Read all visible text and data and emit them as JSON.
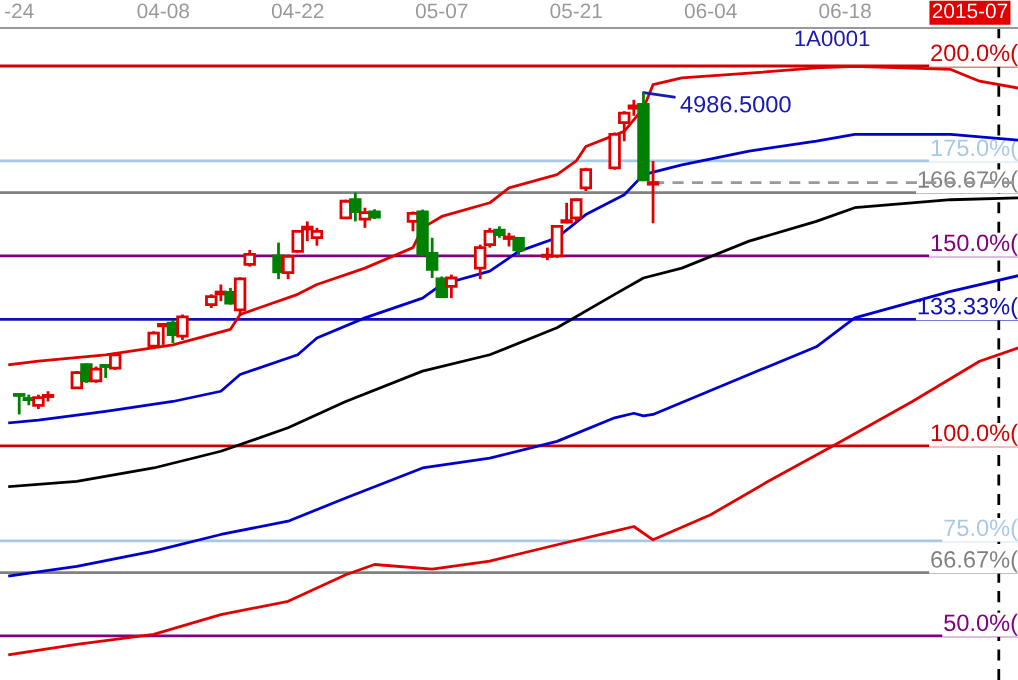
{
  "chart_data": {
    "type": "candlestick",
    "tick_labels": "x",
    "xlim": [
      "2015-03-22",
      "2015-07-06"
    ],
    "ylim": [
      38.4,
      210
    ],
    "xticks": [
      {
        "value": "2015-03-24",
        "label": "-24"
      },
      {
        "value": "2015-04-08",
        "label": "04-08"
      },
      {
        "value": "2015-04-22",
        "label": "04-22"
      },
      {
        "value": "2015-05-07",
        "label": "05-07"
      },
      {
        "value": "2015-05-21",
        "label": "05-21"
      },
      {
        "value": "2015-06-04",
        "label": "06-04"
      },
      {
        "value": "2015-06-18",
        "label": "06-18"
      },
      {
        "value": "2015-07",
        "label": "2015-07"
      }
    ],
    "x": [
      "2015-03-24",
      "2015-03-25",
      "2015-03-26",
      "2015-03-27",
      "2015-03-30",
      "2015-03-31",
      "2015-04-01",
      "2015-04-02",
      "2015-04-03",
      "2015-04-07",
      "2015-04-08",
      "2015-04-09",
      "2015-04-10",
      "2015-04-13",
      "2015-04-14",
      "2015-04-15",
      "2015-04-16",
      "2015-04-17",
      "2015-04-20",
      "2015-04-21",
      "2015-04-22",
      "2015-04-23",
      "2015-04-24",
      "2015-04-27",
      "2015-04-28",
      "2015-04-29",
      "2015-04-30",
      "2015-05-04",
      "2015-05-05",
      "2015-05-06",
      "2015-05-07",
      "2015-05-08",
      "2015-05-11",
      "2015-05-12",
      "2015-05-13",
      "2015-05-14",
      "2015-05-15",
      "2015-05-18",
      "2015-05-19",
      "2015-05-20",
      "2015-05-21",
      "2015-05-22",
      "2015-05-25",
      "2015-05-26",
      "2015-05-27",
      "2015-05-28",
      "2015-05-29"
    ],
    "ohlc": [
      [
        113.5,
        113.9,
        108.3,
        113.3
      ],
      [
        112.5,
        113.5,
        110.7,
        112.2
      ],
      [
        110.7,
        113.5,
        109.7,
        112.7
      ],
      [
        113.0,
        114.4,
        111.7,
        113.3
      ],
      [
        115.3,
        119.7,
        115.1,
        119.3
      ],
      [
        121.4,
        121.7,
        116.6,
        117.1
      ],
      [
        117.1,
        120.9,
        116.6,
        120.2
      ],
      [
        121.2,
        121.4,
        117.9,
        120.9
      ],
      [
        120.5,
        124.6,
        120.0,
        124.0
      ],
      [
        126.3,
        130.2,
        125.8,
        129.7
      ],
      [
        131.6,
        132.0,
        126.6,
        132.0
      ],
      [
        132.3,
        133.2,
        127.1,
        129.3
      ],
      [
        128.9,
        134.6,
        127.9,
        134.0
      ],
      [
        137.2,
        139.9,
        136.3,
        139.3
      ],
      [
        140.0,
        142.5,
        138.1,
        140.5
      ],
      [
        140.4,
        141.6,
        137.2,
        137.6
      ],
      [
        135.8,
        144.4,
        134.2,
        144.0
      ],
      [
        147.8,
        151.6,
        147.2,
        150.4
      ],
      [
        150.0,
        153.5,
        143.9,
        145.8
      ],
      [
        145.6,
        150.4,
        143.9,
        149.9
      ],
      [
        151.2,
        156.8,
        150.9,
        156.5
      ],
      [
        157.1,
        159.1,
        153.9,
        157.6
      ],
      [
        154.8,
        157.4,
        152.7,
        156.5
      ],
      [
        160.0,
        164.8,
        159.7,
        164.4
      ],
      [
        164.8,
        166.7,
        159.1,
        161.7
      ],
      [
        159.7,
        162.7,
        157.4,
        161.4
      ],
      [
        161.6,
        162.3,
        159.7,
        160.2
      ],
      [
        159.1,
        161.7,
        156.5,
        161.2
      ],
      [
        161.6,
        162.2,
        150.0,
        150.4
      ],
      [
        150.7,
        154.8,
        144.2,
        146.5
      ],
      [
        144.0,
        144.6,
        138.9,
        139.3
      ],
      [
        142.0,
        145.1,
        138.9,
        144.2
      ],
      [
        146.8,
        153.0,
        143.9,
        152.2
      ],
      [
        153.0,
        157.4,
        152.2,
        156.5
      ],
      [
        156.8,
        157.8,
        154.8,
        155.6
      ],
      [
        154.6,
        156.1,
        152.5,
        155.0
      ],
      [
        154.6,
        155.0,
        150.0,
        151.6
      ],
      [
        149.9,
        152.2,
        148.9,
        150.2
      ],
      [
        150.0,
        158.1,
        149.5,
        157.8
      ],
      [
        158.9,
        164.0,
        158.6,
        159.3
      ],
      [
        160.0,
        165.1,
        158.8,
        164.8
      ],
      [
        167.9,
        173.2,
        167.1,
        172.7
      ],
      [
        173.2,
        182.5,
        172.7,
        182.0
      ],
      [
        185.1,
        188.1,
        180.2,
        187.6
      ],
      [
        188.9,
        191.1,
        186.9,
        189.5
      ],
      [
        189.9,
        193.0,
        169.7,
        170.0
      ],
      [
        168.9,
        175.0,
        158.6,
        169.3
      ]
    ],
    "colors": [
      "#008000",
      "#008000",
      "#e00000",
      "#e00000",
      "#e00000",
      "#008000",
      "#e00000",
      "#008000",
      "#e00000",
      "#e00000",
      "#e00000",
      "#008000",
      "#e00000",
      "#e00000",
      "#e00000",
      "#008000",
      "#e00000",
      "#e00000",
      "#008000",
      "#e00000",
      "#e00000",
      "#e00000",
      "#e00000",
      "#e00000",
      "#008000",
      "#e00000",
      "#008000",
      "#e00000",
      "#008000",
      "#008000",
      "#008000",
      "#e00000",
      "#e00000",
      "#e00000",
      "#008000",
      "#e00000",
      "#008000",
      "#e00000",
      "#e00000",
      "#e00000",
      "#e00000",
      "#e00000",
      "#e00000",
      "#e00000",
      "#e00000",
      "#008000",
      "#e00000"
    ],
    "series": [
      {
        "type": "line",
        "color": "#e00000",
        "x": [
          "2015-03-23",
          "2015-03-26",
          "2015-04-02",
          "2015-04-09",
          "2015-04-15",
          "2015-04-16",
          "2015-04-22",
          "2015-04-24",
          "2015-04-29",
          "2015-05-04",
          "2015-05-05",
          "2015-05-07",
          "2015-05-12",
          "2015-05-14",
          "2015-05-19",
          "2015-05-21",
          "2015-05-22",
          "2015-05-26",
          "2015-05-28",
          "2015-05-29",
          "2015-06-01",
          "2015-06-08",
          "2015-06-15",
          "2015-06-19",
          "2015-06-29",
          "2015-07-02",
          "2015-07-06"
        ],
        "values": [
          121.4,
          122.3,
          124.0,
          126.6,
          130.7,
          134.6,
          139.9,
          142.5,
          146.8,
          152.2,
          157.4,
          160.4,
          164.0,
          167.9,
          171.4,
          175.0,
          178.8,
          182.8,
          188.9,
          195.1,
          196.9,
          198.1,
          199.5,
          199.9,
          199.1,
          196.0,
          194.2
        ]
      },
      {
        "type": "line",
        "color": "#0000cc",
        "x": [
          "2015-03-23",
          "2015-03-26",
          "2015-04-02",
          "2015-04-09",
          "2015-04-14",
          "2015-04-16",
          "2015-04-22",
          "2015-04-24",
          "2015-04-29",
          "2015-05-05",
          "2015-05-07",
          "2015-05-12",
          "2015-05-15",
          "2015-05-19",
          "2015-05-22",
          "2015-05-26",
          "2015-05-28",
          "2015-06-01",
          "2015-06-08",
          "2015-06-15",
          "2015-06-19",
          "2015-06-29",
          "2015-07-06"
        ],
        "values": [
          106.1,
          106.8,
          109.1,
          111.7,
          114.4,
          118.8,
          124.0,
          128.4,
          133.7,
          138.9,
          142.5,
          146.0,
          151.2,
          154.8,
          160.9,
          166.1,
          171.4,
          174.0,
          177.6,
          180.2,
          182.0,
          182.0,
          180.5
        ]
      },
      {
        "type": "line",
        "color": "#000000",
        "x": [
          "2015-03-23",
          "2015-03-30",
          "2015-04-07",
          "2015-04-14",
          "2015-04-21",
          "2015-04-27",
          "2015-05-05",
          "2015-05-12",
          "2015-05-19",
          "2015-05-25",
          "2015-05-28",
          "2015-06-01",
          "2015-06-08",
          "2015-06-15",
          "2015-06-19",
          "2015-06-29",
          "2015-07-06"
        ],
        "values": [
          89.3,
          90.7,
          94.2,
          98.6,
          104.8,
          111.7,
          119.7,
          124.0,
          131.1,
          139.9,
          144.2,
          146.8,
          153.9,
          159.1,
          162.7,
          164.8,
          165.3
        ]
      },
      {
        "type": "line",
        "color": "#0000cc",
        "x": [
          "2015-03-23",
          "2015-03-30",
          "2015-04-07",
          "2015-04-14",
          "2015-04-21",
          "2015-04-27",
          "2015-05-05",
          "2015-05-12",
          "2015-05-19",
          "2015-05-25",
          "2015-05-27",
          "2015-05-28",
          "2015-05-29",
          "2015-06-08",
          "2015-06-15",
          "2015-06-19",
          "2015-06-29",
          "2015-07-06"
        ],
        "values": [
          65.8,
          68.3,
          72.3,
          76.7,
          80.2,
          86.3,
          94.2,
          96.8,
          101.2,
          107.4,
          108.6,
          107.9,
          108.3,
          118.8,
          126.1,
          133.7,
          140.7,
          144.8
        ]
      },
      {
        "type": "line",
        "color": "#e00000",
        "x": [
          "2015-03-23",
          "2015-03-30",
          "2015-04-07",
          "2015-04-14",
          "2015-04-21",
          "2015-04-27",
          "2015-04-30",
          "2015-05-06",
          "2015-05-12",
          "2015-05-19",
          "2015-05-25",
          "2015-05-27",
          "2015-05-29",
          "2015-06-04",
          "2015-06-10",
          "2015-06-17",
          "2015-06-25",
          "2015-07-02",
          "2015-07-06"
        ],
        "values": [
          45.1,
          47.8,
          50.4,
          55.6,
          59.1,
          66.1,
          68.8,
          67.6,
          69.7,
          74.0,
          77.6,
          78.8,
          75.3,
          81.9,
          90.7,
          100.4,
          111.7,
          122.3,
          125.8
        ]
      },
      {
        "type": "line",
        "color": "#999999",
        "line_style": "dashed",
        "x": [
          "2015-05-29",
          "2015-07-06"
        ],
        "values": [
          169.3,
          169.3
        ]
      }
    ],
    "ref_lines": [
      {
        "axis": "y",
        "value": 200,
        "label": "200.0%(",
        "color": "#d00000"
      },
      {
        "axis": "y",
        "value": 175,
        "label": "175.0%(",
        "color": "#a8c8e8"
      },
      {
        "axis": "y",
        "value": 166.67,
        "label": "166.67%(",
        "color": "#808080"
      },
      {
        "axis": "y",
        "value": 150,
        "label": "150.0%(",
        "color": "#800080"
      },
      {
        "axis": "y",
        "value": 133.33,
        "label": "133.33%(",
        "color": "#1010b0"
      },
      {
        "axis": "y",
        "value": 100,
        "label": "100.0%(",
        "color": "#d00000"
      },
      {
        "axis": "y",
        "value": 75,
        "label": "75.0%(",
        "color": "#a8c8e8"
      },
      {
        "axis": "y",
        "value": 66.67,
        "label": "66.67%(",
        "color": "#808080"
      },
      {
        "axis": "y",
        "value": 50,
        "label": "50.0%(",
        "color": "#800080"
      },
      {
        "axis": "x",
        "value": "2015-07-04",
        "color": "#000000",
        "line_style": "dashed"
      }
    ],
    "annotations": [
      "1A0001",
      {
        "text": "4986.5000",
        "x": "2015-05-28",
        "y": 193.0
      }
    ]
  }
}
